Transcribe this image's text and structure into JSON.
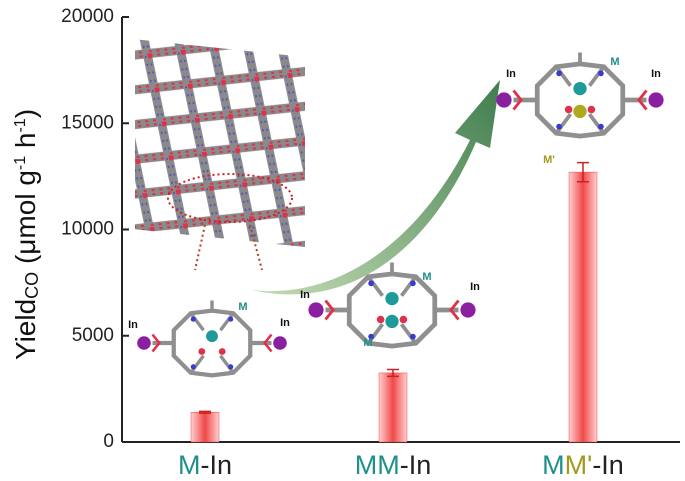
{
  "chart_data": {
    "type": "bar",
    "y_label_parts": [
      {
        "text": "Yield"
      },
      {
        "text": "CO",
        "sub": true
      },
      {
        "text": " (μmol g"
      },
      {
        "text": "-1",
        "sup": true
      },
      {
        "text": " h"
      },
      {
        "text": "-1",
        "sup": true
      },
      {
        "text": ")"
      }
    ],
    "category_labels": [
      [
        {
          "text": "M",
          "color": "#1f8f8a"
        },
        {
          "text": "-In",
          "color": "#222222"
        }
      ],
      [
        {
          "text": "MM",
          "color": "#1f8f8a"
        },
        {
          "text": "-In",
          "color": "#222222"
        }
      ],
      [
        {
          "text": "M",
          "color": "#1f8f8a"
        },
        {
          "text": "M'",
          "color": "#a09a1e"
        },
        {
          "text": "-In",
          "color": "#222222"
        }
      ]
    ],
    "values": [
      1400,
      3250,
      12700
    ],
    "errors": [
      40,
      160,
      450
    ],
    "color": "#f04848",
    "ylim": [
      0,
      20000
    ],
    "yticks": [
      0,
      5000,
      10000,
      15000,
      20000
    ],
    "annotations": [
      {
        "text": "In",
        "color": "#111111"
      },
      {
        "text": "M",
        "color": "#1f8f8a"
      },
      {
        "text": "In",
        "color": "#111111"
      },
      {
        "text": "In",
        "color": "#111111"
      },
      {
        "text": "M",
        "color": "#1f8f8a"
      },
      {
        "text": "M",
        "color": "#1f8f8a"
      },
      {
        "text": "In",
        "color": "#111111"
      },
      {
        "text": "In",
        "color": "#111111"
      },
      {
        "text": "M",
        "color": "#1f8f8a"
      },
      {
        "text": "M'",
        "color": "#a09a1e"
      },
      {
        "text": "In",
        "color": "#111111"
      }
    ]
  }
}
